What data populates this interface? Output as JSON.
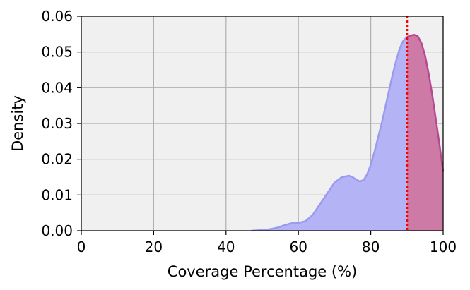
{
  "chart_data": {
    "type": "area",
    "title": "",
    "xlabel": "Coverage Percentage (%)",
    "ylabel": "Density",
    "xlim": [
      0,
      100
    ],
    "ylim": [
      0,
      0.06
    ],
    "xticks": [
      0,
      20,
      40,
      60,
      80,
      100
    ],
    "xtick_labels": [
      "0",
      "20",
      "40",
      "60",
      "80",
      "100"
    ],
    "yticks": [
      0,
      0.01,
      0.02,
      0.03,
      0.04,
      0.05,
      0.06
    ],
    "ytick_labels": [
      "0.00",
      "0.01",
      "0.02",
      "0.03",
      "0.04",
      "0.05",
      "0.06"
    ],
    "grid": true,
    "threshold": {
      "x": 90,
      "color": "#ff0000",
      "style": "dotted"
    },
    "series": [
      {
        "x": [
          47,
          50,
          52,
          54,
          56,
          58,
          60,
          62,
          64,
          66,
          68,
          70,
          72,
          74,
          75,
          76,
          77,
          78,
          79,
          80,
          81,
          82,
          83,
          84,
          85,
          86,
          87,
          88,
          89,
          90,
          91,
          92,
          93,
          94,
          95,
          96,
          97,
          98,
          99,
          100
        ],
        "y": [
          0.0,
          0.0002,
          0.0004,
          0.0008,
          0.0015,
          0.0021,
          0.0022,
          0.0027,
          0.0045,
          0.0075,
          0.0105,
          0.0135,
          0.015,
          0.0154,
          0.015,
          0.0143,
          0.0138,
          0.0142,
          0.0158,
          0.0185,
          0.022,
          0.026,
          0.03,
          0.0345,
          0.039,
          0.0435,
          0.0475,
          0.051,
          0.0532,
          0.0542,
          0.0546,
          0.0548,
          0.0544,
          0.0525,
          0.049,
          0.044,
          0.038,
          0.031,
          0.024,
          0.0165
        ],
        "fill_color": "#b3b3f5",
        "line_color": "#9a9af0",
        "highlight_from": 90,
        "highlight_fill": "#cd7aa6",
        "highlight_line": "#b54a90"
      }
    ]
  }
}
